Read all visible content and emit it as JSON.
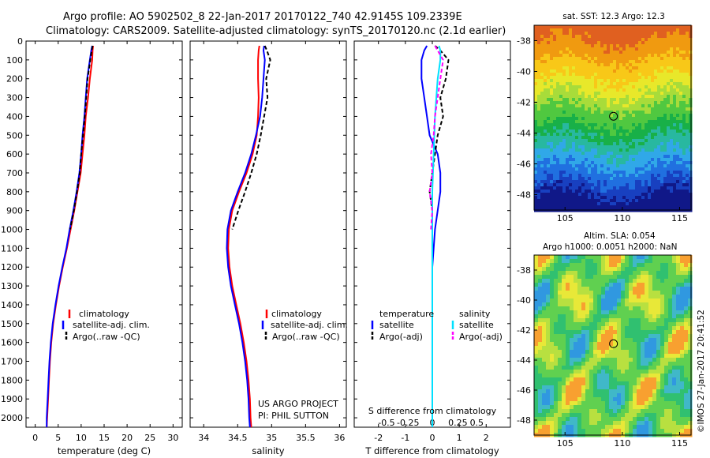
{
  "header": {
    "line1": "Argo profile: AO 5902502_8 22-Jan-2017 20170122_740 42.9145S 109.2339E",
    "line2": "Climatology: CARS2009. Satellite-adjusted climatology: synTS_20170120.nc (2.1d earlier)"
  },
  "colors": {
    "climatology": "#ff0000",
    "satellite": "#0000ff",
    "argo": "#000000",
    "sat_salinity": "#00e0ff",
    "argo_salinity": "#ff00ff"
  },
  "depth_axis": {
    "ticks": [
      "0",
      "100",
      "200",
      "300",
      "400",
      "500",
      "600",
      "700",
      "800",
      "900",
      "1000",
      "1100",
      "1200",
      "1300",
      "1400",
      "1500",
      "1600",
      "1700",
      "1800",
      "1900",
      "2000"
    ]
  },
  "legend": {
    "climatology": "climatology",
    "satellite": "satellite-adj. clim.",
    "argo": "Argo(..raw -QC)"
  },
  "credit": {
    "line1": "US ARGO PROJECT",
    "line2": "PI: PHIL SUTTON"
  },
  "diff_legend": {
    "temperature": "temperature",
    "salinity": "salinity",
    "satellite": "satellite",
    "argo_adj": "Argo(-adj)"
  },
  "sst_title": "sat. SST: 12.3 Argo: 12.3",
  "sla_title1": "Altim. SLA: 0.054",
  "sla_title2": "Argo h1000: 0.0051 h2000: NaN",
  "side_stamp": "©IMOS 27-Jan-2017 20:41:52",
  "chart_data": [
    {
      "type": "line",
      "xlabel": "temperature (deg C)",
      "ylabel": "",
      "xlim": [
        -2,
        32
      ],
      "ylim": [
        2050,
        0
      ],
      "xticks": [
        "0",
        "5",
        "10",
        "15",
        "20",
        "25",
        "30"
      ],
      "series": [
        {
          "name": "climatology",
          "x": [
            12.6,
            12.5,
            12.4,
            11.9,
            11.5,
            11.0,
            10.7,
            10.3,
            9.9,
            9.2,
            8.5,
            7.7,
            6.9,
            6.0,
            5.2,
            4.5,
            3.9,
            3.5,
            3.2,
            3.0,
            2.8,
            2.7,
            2.6,
            2.55,
            2.5
          ],
          "y": [
            25,
            50,
            100,
            200,
            300,
            400,
            500,
            600,
            700,
            800,
            900,
            1000,
            1100,
            1200,
            1300,
            1400,
            1500,
            1600,
            1700,
            1800,
            1900,
            1950,
            2000,
            2025,
            2050
          ]
        },
        {
          "name": "satellite-adj. clim.",
          "x": [
            12.4,
            12.2,
            11.9,
            11.3,
            11.0,
            10.7,
            10.3,
            10.0,
            9.6,
            9.0,
            8.3,
            7.5,
            6.8,
            5.9,
            5.1,
            4.4,
            3.8,
            3.4,
            3.1,
            2.9,
            2.7,
            2.6,
            2.5,
            2.5,
            2.5
          ],
          "y": [
            25,
            50,
            100,
            200,
            300,
            400,
            500,
            600,
            700,
            800,
            900,
            1000,
            1100,
            1200,
            1300,
            1400,
            1500,
            1600,
            1700,
            1800,
            1900,
            1950,
            2000,
            2025,
            2050
          ]
        },
        {
          "name": "Argo(..raw -QC)",
          "x": [
            12.5,
            12.3,
            12.0,
            11.4,
            11.1,
            10.8,
            10.4,
            10.0,
            9.7,
            9.1,
            8.4,
            7.6
          ],
          "y": [
            25,
            50,
            100,
            200,
            300,
            400,
            500,
            600,
            700,
            800,
            900,
            1000
          ]
        }
      ]
    },
    {
      "type": "line",
      "xlabel": "salinity",
      "ylabel": "",
      "xlim": [
        33.8,
        36.1
      ],
      "ylim": [
        2050,
        0
      ],
      "xticks": [
        "34",
        "34.5",
        "35",
        "35.5",
        "36"
      ],
      "series": [
        {
          "name": "climatology",
          "x": [
            34.82,
            34.81,
            34.8,
            34.8,
            34.81,
            34.8,
            34.78,
            34.72,
            34.63,
            34.52,
            34.42,
            34.37,
            34.36,
            34.38,
            34.42,
            34.48,
            34.54,
            34.59,
            34.63,
            34.66,
            34.68,
            34.69,
            34.7
          ],
          "y": [
            25,
            50,
            100,
            200,
            300,
            400,
            500,
            600,
            700,
            800,
            900,
            1000,
            1100,
            1200,
            1300,
            1400,
            1500,
            1600,
            1700,
            1800,
            1900,
            2000,
            2050
          ]
        },
        {
          "name": "satellite-adj. clim.",
          "x": [
            34.89,
            34.88,
            34.9,
            34.88,
            34.86,
            34.83,
            34.77,
            34.7,
            34.61,
            34.5,
            34.4,
            34.35,
            34.34,
            34.36,
            34.4,
            34.46,
            34.52,
            34.57,
            34.61,
            34.64,
            34.66,
            34.67,
            34.68
          ],
          "y": [
            25,
            50,
            100,
            200,
            300,
            400,
            500,
            600,
            700,
            800,
            900,
            1000,
            1100,
            1200,
            1300,
            1400,
            1500,
            1600,
            1700,
            1800,
            1900,
            2000,
            2050
          ]
        },
        {
          "name": "Argo(..raw -QC)",
          "x": [
            34.9,
            34.93,
            34.98,
            34.92,
            34.94,
            34.89,
            34.84,
            34.78,
            34.7,
            34.61,
            34.51,
            34.42
          ],
          "y": [
            25,
            50,
            100,
            200,
            300,
            400,
            500,
            600,
            700,
            800,
            900,
            1000
          ]
        }
      ]
    },
    {
      "type": "line",
      "xlabel": "T difference from climatology",
      "xlabel_top": "S difference from climatology",
      "ylabel": "",
      "xlim": [
        -2.9,
        2.9
      ],
      "ylim": [
        2050,
        0
      ],
      "xticks": [
        "-2",
        "-1",
        "0",
        "1",
        "2"
      ],
      "xticks_top": [
        "-0.5",
        "-0.25",
        "0",
        "0.25",
        "0.5"
      ],
      "series": [
        {
          "name": "temperature satellite",
          "x": [
            -0.2,
            -0.3,
            -0.4,
            -0.4,
            -0.3,
            -0.2,
            -0.1,
            0.2,
            0.3,
            0.3,
            0.2,
            0.1,
            0.05,
            0.0,
            0.0,
            0.0,
            0.0,
            0.0,
            0.0,
            0.0
          ],
          "y": [
            25,
            50,
            100,
            200,
            300,
            400,
            500,
            600,
            700,
            800,
            900,
            1000,
            1100,
            1200,
            1300,
            1400,
            1500,
            1600,
            1800,
            2050
          ]
        },
        {
          "name": "temperature Argo(-adj)",
          "x": [
            0.1,
            0.3,
            0.6,
            0.5,
            0.3,
            0.4,
            0.2,
            0.1,
            0.0,
            -0.1,
            0.0,
            0.0
          ],
          "y": [
            25,
            50,
            100,
            200,
            300,
            400,
            500,
            600,
            700,
            800,
            900,
            1000
          ]
        },
        {
          "name": "salinity satellite",
          "x": [
            0.25,
            0.3,
            0.3,
            0.2,
            0.15,
            0.1,
            0.05,
            0.0,
            0.0,
            0.0,
            0.0,
            0.0,
            0.0,
            0.0,
            0.0
          ],
          "y": [
            25,
            50,
            100,
            200,
            300,
            400,
            600,
            800,
            1000,
            1200,
            1400,
            1600,
            1800,
            2000,
            2050
          ]
        },
        {
          "name": "salinity Argo(-adj)",
          "x": [
            0.1,
            0.2,
            0.4,
            0.3,
            0.2,
            0.1,
            0.05,
            -0.05,
            0.0,
            -0.1,
            0.0,
            -0.05
          ],
          "y": [
            25,
            50,
            100,
            200,
            300,
            400,
            500,
            600,
            700,
            800,
            900,
            1000
          ]
        }
      ]
    },
    {
      "type": "heatmap",
      "title": "sat. SST: 12.3 Argo: 12.3",
      "xlim": [
        102.3,
        116
      ],
      "ylim": [
        -49,
        -37
      ],
      "xticks": [
        "105",
        "110",
        "115"
      ],
      "yticks": [
        "-38",
        "-40",
        "-42",
        "-44",
        "-46",
        "-48"
      ],
      "marker": {
        "lon": 109.23,
        "lat": -42.91
      }
    },
    {
      "type": "heatmap",
      "title": "Altim. SLA: 0.054",
      "xlim": [
        102.3,
        116
      ],
      "ylim": [
        -49,
        -37
      ],
      "xticks": [
        "105",
        "110",
        "115"
      ],
      "yticks": [
        "-38",
        "-40",
        "-42",
        "-44",
        "-46",
        "-48"
      ],
      "marker": {
        "lon": 109.23,
        "lat": -42.91
      }
    }
  ]
}
